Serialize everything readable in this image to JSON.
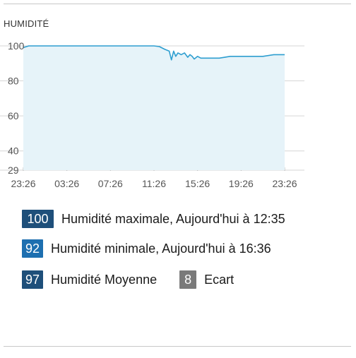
{
  "section": {
    "title": "HUMIDITÉ"
  },
  "colors": {
    "line": "#2e9ed0",
    "fill": "#e6f3f9",
    "grid": "#d6d6d6",
    "max_badge": "#1e4f7a",
    "min_badge": "#1d6fb0",
    "avg_badge": "#1e4f7a",
    "ecart_badge": "#7a7a7a"
  },
  "chart_data": {
    "type": "area",
    "title": "",
    "xlabel": "",
    "ylabel": "",
    "ylim": [
      29,
      102
    ],
    "y_ticks": [
      100,
      80,
      60,
      40,
      29
    ],
    "x_tick_labels": [
      "23:26",
      "03:26",
      "07:26",
      "11:26",
      "15:26",
      "19:26",
      "23:26"
    ],
    "grid": true,
    "series": [
      {
        "x": [
          0,
          0.5,
          1,
          4,
          8,
          12,
          12.5,
          13,
          13.4,
          13.6,
          13.8,
          14.0,
          14.2,
          14.5,
          14.8,
          15.1,
          15.3,
          15.5,
          15.7,
          16.0,
          16.3,
          16.5,
          16.8,
          17.0,
          17.3,
          17.6,
          18.0,
          19.0,
          20.0,
          21.0,
          22.0,
          23.0,
          23.3,
          24.0
        ],
        "y": [
          99,
          100,
          100,
          100,
          100,
          100,
          99.6,
          98,
          97,
          92,
          97,
          94,
          96,
          95,
          96,
          93.5,
          95,
          94,
          92.5,
          94,
          93,
          93,
          93,
          93,
          93,
          93,
          93,
          94,
          94,
          94,
          94,
          95,
          95,
          95
        ]
      }
    ]
  },
  "stats": [
    {
      "value": "100",
      "label": "Humidité maximale, Aujourd'hui à 12:35"
    },
    {
      "value": "92",
      "label": "Humidité minimale, Aujourd'hui à 16:36"
    },
    {
      "value": "97",
      "label": "Humidité Moyenne"
    }
  ],
  "ecart": {
    "value": "8",
    "label": "Ecart"
  }
}
